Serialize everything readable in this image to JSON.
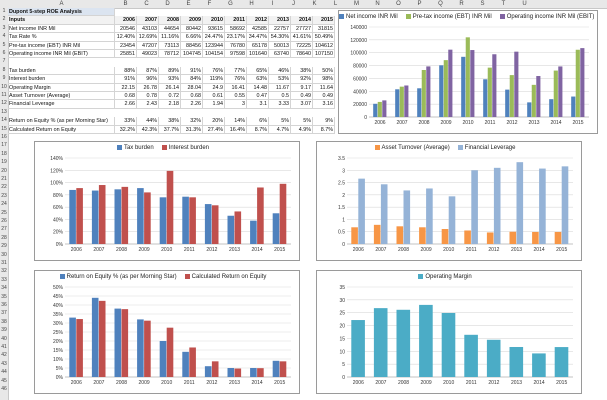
{
  "columns": [
    "A",
    "B",
    "C",
    "D",
    "E",
    "F",
    "G",
    "H",
    "I",
    "J",
    "K",
    "L",
    "M",
    "N",
    "O",
    "P",
    "Q",
    "R",
    "S",
    "T",
    "U"
  ],
  "rows": [
    "1",
    "2",
    "3",
    "4",
    "5",
    "6",
    "7",
    "8",
    "9",
    "10",
    "11",
    "12",
    "13",
    "14",
    "15",
    "16",
    "17",
    "18",
    "19",
    "20",
    "21",
    "22",
    "23",
    "24",
    "25",
    "26",
    "27",
    "28",
    "29",
    "30",
    "31",
    "32",
    "33",
    "34",
    "35",
    "36",
    "37",
    "38",
    "39",
    "40",
    "41",
    "42",
    "43",
    "44",
    "45",
    "46"
  ],
  "sheet": {
    "title": "Dupont 5-step ROE Analysis",
    "inputs_label": "Inputs",
    "years": [
      "2006",
      "2007",
      "2008",
      "2009",
      "2010",
      "2011",
      "2012",
      "2013",
      "2014",
      "2015"
    ],
    "block1": [
      {
        "label": "Net income INR Mil",
        "values": [
          "20546",
          "43103",
          "44654",
          "80442",
          "93615",
          "58692",
          "42585",
          "22757",
          "27727",
          "31815"
        ]
      },
      {
        "label": "Tax Rate %",
        "values": [
          "12.40%",
          "12.69%",
          "11.16%",
          "6.66%",
          "24.47%",
          "23.17%",
          "34.47%",
          "54.30%",
          "41.61%",
          "50.49%"
        ]
      },
      {
        "label": "Pre-tax income (EBT) INR Mil",
        "values": [
          "23454",
          "47207",
          "73113",
          "88456",
          "123944",
          "76780",
          "65178",
          "50013",
          "72225",
          "104612"
        ]
      },
      {
        "label": "Operating income INR Mil (EBIT)",
        "values": [
          "25851",
          "49023",
          "78712",
          "104745",
          "104154",
          "97598",
          "101640",
          "63740",
          "78640",
          "107150"
        ]
      }
    ],
    "block2": [
      {
        "label": "Tax burden",
        "values": [
          "88%",
          "87%",
          "89%",
          "91%",
          "76%",
          "77%",
          "65%",
          "46%",
          "38%",
          "50%"
        ]
      },
      {
        "label": "Interest burden",
        "values": [
          "91%",
          "96%",
          "93%",
          "84%",
          "119%",
          "76%",
          "63%",
          "53%",
          "92%",
          "98%"
        ]
      },
      {
        "label": "Operating Margin",
        "values": [
          "22.15",
          "26.78",
          "26.14",
          "28.04",
          "24.9",
          "16.41",
          "14.48",
          "11.67",
          "9.17",
          "11.64"
        ]
      },
      {
        "label": "Asset Turnover (Average)",
        "values": [
          "0.68",
          "0.78",
          "0.72",
          "0.68",
          "0.61",
          "0.55",
          "0.47",
          "0.5",
          "0.49",
          "0.49"
        ]
      },
      {
        "label": "Financial Leverage",
        "values": [
          "2.66",
          "2.43",
          "2.18",
          "2.26",
          "1.94",
          "3",
          "3.1",
          "3.33",
          "3.07",
          "3.16"
        ]
      }
    ],
    "block3": [
      {
        "label": "Return on Equity % (as per Morning Star)",
        "values": [
          "33%",
          "44%",
          "38%",
          "32%",
          "20%",
          "14%",
          "6%",
          "5%",
          "5%",
          "9%"
        ]
      },
      {
        "label": "Calculated Return on Equity",
        "values": [
          "32.2%",
          "42.3%",
          "37.7%",
          "31.3%",
          "27.4%",
          "16.4%",
          "8.7%",
          "4.7%",
          "4.9%",
          "8.7%"
        ]
      }
    ]
  },
  "chart_data": [
    {
      "type": "bar",
      "categories": [
        "2006",
        "2007",
        "2008",
        "2009",
        "2010",
        "2011",
        "2012",
        "2013",
        "2014",
        "2015"
      ],
      "series": [
        {
          "name": "Net income INR Mil",
          "values": [
            20546,
            43103,
            44654,
            80442,
            93615,
            58692,
            42585,
            22757,
            27727,
            31815
          ]
        },
        {
          "name": "Pre-tax income (EBT) INR Mil",
          "values": [
            23454,
            47207,
            73113,
            88456,
            123944,
            76780,
            65178,
            50013,
            72225,
            104612
          ]
        },
        {
          "name": "Operating income INR Mil (EBIT)",
          "values": [
            25851,
            49023,
            78712,
            104745,
            104154,
            97598,
            101640,
            63740,
            78640,
            107150
          ]
        }
      ],
      "colors": [
        "#4f81bd",
        "#9bbb59",
        "#8064a2"
      ],
      "ylim": [
        0,
        140000
      ],
      "yticks": [
        "0",
        "20000",
        "40000",
        "60000",
        "80000",
        "100000",
        "120000",
        "140000"
      ],
      "legend": "top"
    },
    {
      "type": "bar",
      "categories": [
        "2006",
        "2007",
        "2008",
        "2009",
        "2010",
        "2011",
        "2012",
        "2013",
        "2014",
        "2015"
      ],
      "series": [
        {
          "name": "Tax burden",
          "values": [
            88,
            87,
            89,
            91,
            76,
            77,
            65,
            46,
            38,
            50
          ]
        },
        {
          "name": "Interest burden",
          "values": [
            91,
            96,
            93,
            84,
            119,
            76,
            63,
            53,
            92,
            98
          ]
        }
      ],
      "colors": [
        "#4f81bd",
        "#c0504d"
      ],
      "ylim": [
        0,
        140
      ],
      "yticks": [
        "0%",
        "20%",
        "40%",
        "60%",
        "80%",
        "100%",
        "120%",
        "140%"
      ],
      "legend": "top"
    },
    {
      "type": "bar",
      "categories": [
        "2006",
        "2007",
        "2008",
        "2009",
        "2010",
        "2011",
        "2012",
        "2013",
        "2014",
        "2015"
      ],
      "series": [
        {
          "name": "Asset Turnover (Average)",
          "values": [
            0.68,
            0.78,
            0.72,
            0.68,
            0.61,
            0.55,
            0.47,
            0.5,
            0.49,
            0.49
          ]
        },
        {
          "name": "Financial Leverage",
          "values": [
            2.66,
            2.43,
            2.18,
            2.26,
            1.94,
            3,
            3.1,
            3.33,
            3.07,
            3.16
          ]
        }
      ],
      "colors": [
        "#f79646",
        "#95b3d7"
      ],
      "ylim": [
        0,
        3.5
      ],
      "yticks": [
        "0",
        "0.5",
        "1",
        "1.5",
        "2",
        "2.5",
        "3",
        "3.5"
      ],
      "legend": "top"
    },
    {
      "type": "bar",
      "categories": [
        "2006",
        "2007",
        "2008",
        "2009",
        "2010",
        "2011",
        "2012",
        "2013",
        "2014",
        "2015"
      ],
      "series": [
        {
          "name": "Return on Equity % (as per Morning Star)",
          "values": [
            33,
            44,
            38,
            32,
            20,
            14,
            6,
            5,
            5,
            9
          ]
        },
        {
          "name": "Calculated Return on Equity",
          "values": [
            32.2,
            42.3,
            37.7,
            31.3,
            27.4,
            16.4,
            8.7,
            4.7,
            4.9,
            8.7
          ]
        }
      ],
      "colors": [
        "#4f81bd",
        "#c0504d"
      ],
      "ylim": [
        0,
        50
      ],
      "yticks": [
        "0%",
        "5%",
        "10%",
        "15%",
        "20%",
        "25%",
        "30%",
        "35%",
        "40%",
        "45%",
        "50%"
      ],
      "legend": "top"
    },
    {
      "type": "bar",
      "categories": [
        "2006",
        "2007",
        "2008",
        "2009",
        "2010",
        "2011",
        "2012",
        "2013",
        "2014",
        "2015"
      ],
      "series": [
        {
          "name": "Operating Margin",
          "values": [
            22.15,
            26.78,
            26.14,
            28.04,
            24.9,
            16.41,
            14.48,
            11.67,
            9.17,
            11.64
          ]
        }
      ],
      "colors": [
        "#4bacc6"
      ],
      "ylim": [
        0,
        35
      ],
      "yticks": [
        "0",
        "5",
        "10",
        "15",
        "20",
        "25",
        "30",
        "35"
      ],
      "legend": "top"
    }
  ]
}
